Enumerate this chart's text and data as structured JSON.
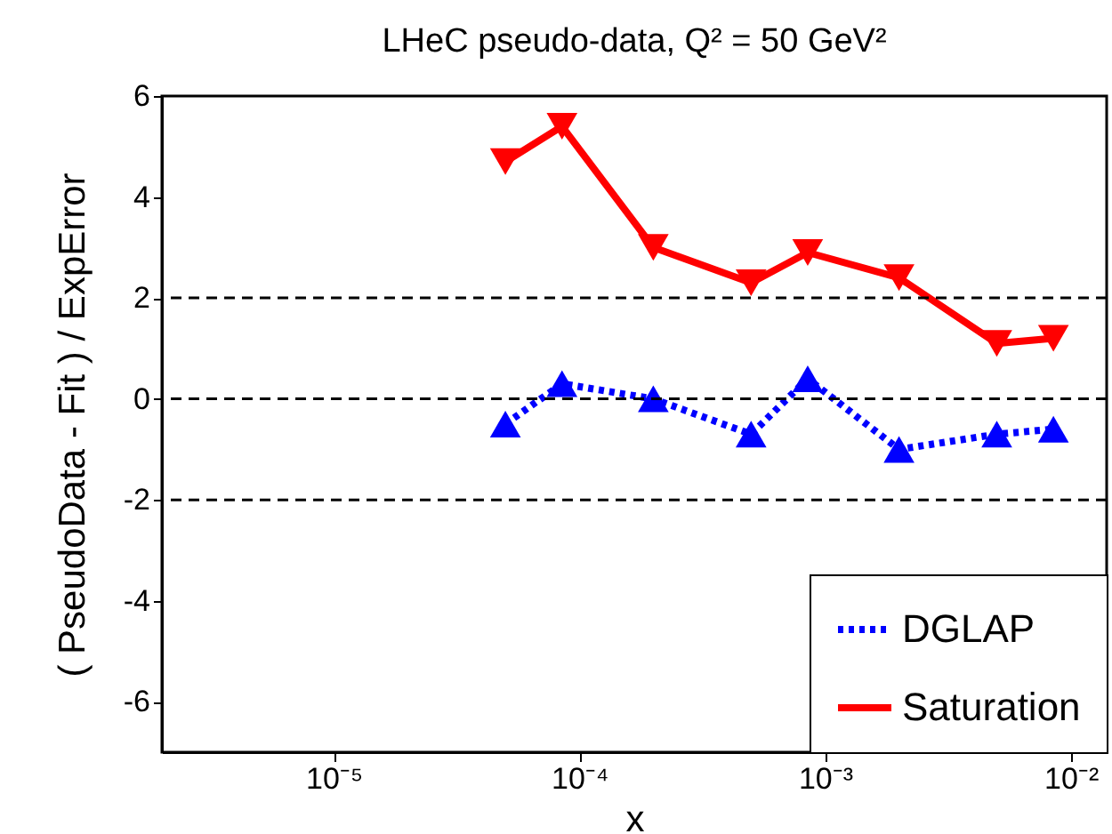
{
  "chart_data": {
    "type": "line",
    "title": "LHeC pseudo-data, Q² = 50 GeV²",
    "xlabel": "x",
    "ylabel": "( PseudoData - Fit ) / ExpError",
    "log": "x",
    "grid": false,
    "legend": "bottom right",
    "xlim": [
      2e-06,
      0.014
    ],
    "xticks": [
      {
        "value": 1e-05,
        "label": "10⁻⁵"
      },
      {
        "value": 0.0001,
        "label": "10⁻⁴"
      },
      {
        "value": 0.001,
        "label": "10⁻³"
      },
      {
        "value": 0.01,
        "label": "10⁻²"
      }
    ],
    "ylim": [
      -7,
      6
    ],
    "yticks": [
      -6,
      -4,
      -2,
      0,
      2,
      4,
      6
    ],
    "x": [
      5e-05,
      8.5e-05,
      0.0002,
      0.0005,
      0.00085,
      0.002,
      0.005,
      0.0085
    ],
    "series": [
      {
        "name": "DGLAP",
        "color": "#0000ff",
        "marker": "triangle",
        "line_style": "dotted",
        "values": [
          -0.5,
          0.3,
          0.0,
          -0.7,
          0.4,
          -1.0,
          -0.7,
          -0.6
        ]
      },
      {
        "name": "Saturation",
        "color": "#ff0000",
        "marker": "triangle-down",
        "line_style": "solid",
        "values": [
          4.7,
          5.4,
          3.0,
          2.3,
          2.9,
          2.4,
          1.1,
          1.2
        ]
      }
    ],
    "ref_lines": [
      {
        "axis": "y",
        "value": 2,
        "line_style": "dashed"
      },
      {
        "axis": "y",
        "value": 0,
        "line_style": "dashed"
      },
      {
        "axis": "y",
        "value": -2,
        "line_style": "dashed"
      }
    ]
  }
}
